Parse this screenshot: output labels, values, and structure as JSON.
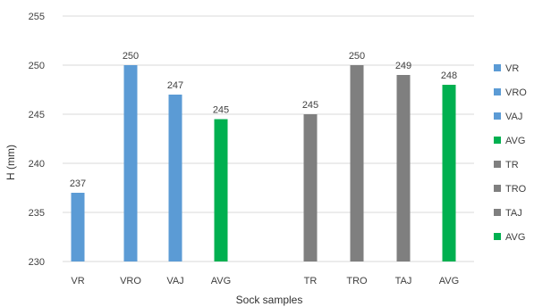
{
  "chart_data": {
    "type": "bar",
    "xlabel": "Sock samples",
    "ylabel": "H (mm)",
    "ylim": [
      230,
      255
    ],
    "yticks": [
      230,
      235,
      240,
      245,
      250,
      255
    ],
    "grid": true,
    "legend_position": "right",
    "categories": [
      "VR",
      "VRO",
      "VAJ",
      "AVG",
      "TR",
      "TRO",
      "TAJ",
      "AVG"
    ],
    "values": [
      237,
      250,
      247,
      244.5,
      245,
      250,
      249,
      248
    ],
    "data_labels": [
      "237",
      "250",
      "247",
      "245",
      "245",
      "250",
      "249",
      "248"
    ],
    "bar_colors": [
      "#5b9bd5",
      "#5b9bd5",
      "#5b9bd5",
      "#00b050",
      "#7f7f7f",
      "#7f7f7f",
      "#7f7f7f",
      "#00b050"
    ],
    "legend": [
      {
        "label": "VR",
        "color": "#5b9bd5"
      },
      {
        "label": "VRO",
        "color": "#5b9bd5"
      },
      {
        "label": "VAJ",
        "color": "#5b9bd5"
      },
      {
        "label": "AVG",
        "color": "#00b050"
      },
      {
        "label": "TR",
        "color": "#7f7f7f"
      },
      {
        "label": "TRO",
        "color": "#7f7f7f"
      },
      {
        "label": "TAJ",
        "color": "#7f7f7f"
      },
      {
        "label": "AVG",
        "color": "#00b050"
      }
    ]
  }
}
